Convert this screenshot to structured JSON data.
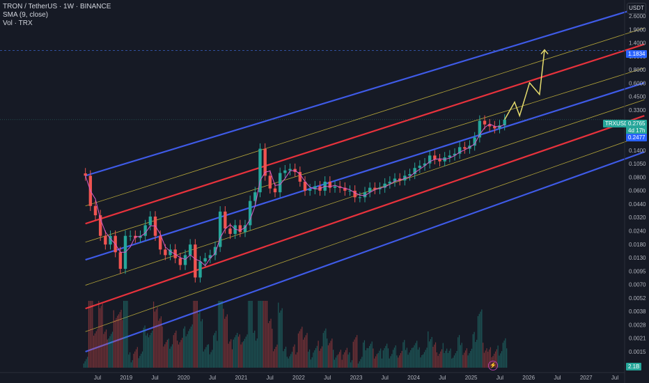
{
  "legend": {
    "symbol": "TRON / TetherUS · 1W · BINANCE",
    "sma": "SMA (9, close)",
    "vol": "Vol · TRX"
  },
  "axis": {
    "currency": "USDT",
    "y_ticks": [
      "2.6000",
      "1.9000",
      "1.4000",
      "1.0500",
      "0.8000",
      "0.6000",
      "0.4500",
      "0.3300",
      "0.2500",
      "0.1900",
      "0.1400",
      "0.1050",
      "0.0800",
      "0.0600",
      "0.0440",
      "0.0320",
      "0.0240",
      "0.0180",
      "0.0130",
      "0.0095",
      "0.0070",
      "0.0052",
      "0.0038",
      "0.0028",
      "0.0021",
      "0.0015"
    ],
    "x_ticks": [
      "Jul",
      "2019",
      "Jul",
      "2020",
      "Jul",
      "2021",
      "Jul",
      "2022",
      "Jul",
      "2023",
      "Jul",
      "2024",
      "Jul",
      "2025",
      "Jul",
      "2026",
      "Jul",
      "2027",
      "Jul"
    ]
  },
  "price_labels": {
    "target": "1.1834",
    "pair": "TRXUSDT",
    "last": "0.2765",
    "countdown": "4d 17h",
    "sma_value": "0.2477",
    "volume": "2.1B"
  },
  "colors": {
    "background": "#161a25",
    "blue_channel": "#3f5be8",
    "red_channel": "#e8323c",
    "yellow_channel": "#b8a83a",
    "projection": "#e6dc6e",
    "up": "#26a69a",
    "down": "#ef5350",
    "sma": "#d85cc8",
    "target_tag": "#2962ff",
    "last_tag": "#26a69a"
  },
  "chart_data": {
    "type": "candlestick",
    "symbol": "TRXUSDT",
    "interval": "1W",
    "y_scale": "log",
    "ylim": [
      0.0015,
      3.0
    ],
    "x_range": [
      "2018-05",
      "2027-09"
    ],
    "grid": false,
    "close_series": [
      [
        "2018-05",
        0.085
      ],
      [
        "2018-06",
        0.045
      ],
      [
        "2018-07",
        0.037
      ],
      [
        "2018-08",
        0.024
      ],
      [
        "2018-09",
        0.02
      ],
      [
        "2018-10",
        0.024
      ],
      [
        "2018-11",
        0.017
      ],
      [
        "2018-12",
        0.012
      ],
      [
        "2019-01",
        0.024
      ],
      [
        "2019-02",
        0.024
      ],
      [
        "2019-03",
        0.023
      ],
      [
        "2019-04",
        0.024
      ],
      [
        "2019-05",
        0.03
      ],
      [
        "2019-06",
        0.036
      ],
      [
        "2019-07",
        0.024
      ],
      [
        "2019-08",
        0.018
      ],
      [
        "2019-09",
        0.016
      ],
      [
        "2019-10",
        0.018
      ],
      [
        "2019-11",
        0.015
      ],
      [
        "2019-12",
        0.013
      ],
      [
        "2020-01",
        0.016
      ],
      [
        "2020-02",
        0.02
      ],
      [
        "2020-03",
        0.01
      ],
      [
        "2020-04",
        0.014
      ],
      [
        "2020-05",
        0.015
      ],
      [
        "2020-06",
        0.016
      ],
      [
        "2020-07",
        0.019
      ],
      [
        "2020-08",
        0.04
      ],
      [
        "2020-09",
        0.028
      ],
      [
        "2020-10",
        0.025
      ],
      [
        "2020-11",
        0.03
      ],
      [
        "2020-12",
        0.026
      ],
      [
        "2021-01",
        0.03
      ],
      [
        "2021-02",
        0.05
      ],
      [
        "2021-03",
        0.06
      ],
      [
        "2021-04",
        0.15
      ],
      [
        "2021-05",
        0.085
      ],
      [
        "2021-06",
        0.065
      ],
      [
        "2021-07",
        0.06
      ],
      [
        "2021-08",
        0.09
      ],
      [
        "2021-09",
        0.095
      ],
      [
        "2021-10",
        0.098
      ],
      [
        "2021-11",
        0.092
      ],
      [
        "2021-12",
        0.075
      ],
      [
        "2022-01",
        0.062
      ],
      [
        "2022-02",
        0.064
      ],
      [
        "2022-03",
        0.068
      ],
      [
        "2022-04",
        0.062
      ],
      [
        "2022-05",
        0.075
      ],
      [
        "2022-06",
        0.066
      ],
      [
        "2022-07",
        0.068
      ],
      [
        "2022-08",
        0.066
      ],
      [
        "2022-09",
        0.062
      ],
      [
        "2022-10",
        0.062
      ],
      [
        "2022-11",
        0.054
      ],
      [
        "2022-12",
        0.054
      ],
      [
        "2023-01",
        0.06
      ],
      [
        "2023-02",
        0.066
      ],
      [
        "2023-03",
        0.064
      ],
      [
        "2023-04",
        0.066
      ],
      [
        "2023-05",
        0.072
      ],
      [
        "2023-06",
        0.075
      ],
      [
        "2023-07",
        0.08
      ],
      [
        "2023-08",
        0.077
      ],
      [
        "2023-09",
        0.085
      ],
      [
        "2023-10",
        0.088
      ],
      [
        "2023-11",
        0.1
      ],
      [
        "2023-12",
        0.105
      ],
      [
        "2024-01",
        0.11
      ],
      [
        "2024-02",
        0.13
      ],
      [
        "2024-03",
        0.12
      ],
      [
        "2024-04",
        0.115
      ],
      [
        "2024-05",
        0.125
      ],
      [
        "2024-06",
        0.13
      ],
      [
        "2024-07",
        0.135
      ],
      [
        "2024-08",
        0.155
      ],
      [
        "2024-09",
        0.15
      ],
      [
        "2024-10",
        0.16
      ],
      [
        "2024-11",
        0.19
      ],
      [
        "2024-12",
        0.27
      ],
      [
        "2025-01",
        0.25
      ],
      [
        "2025-02",
        0.24
      ],
      [
        "2025-03",
        0.23
      ],
      [
        "2025-04",
        0.245
      ],
      [
        "2025-05",
        0.2765
      ]
    ],
    "channels": [
      {
        "color": "blue",
        "start": [
          "2018-05",
          0.085
        ],
        "end": [
          "2027-09",
          3.0
        ]
      },
      {
        "color": "yellow",
        "start": [
          "2018-05",
          0.045
        ],
        "end": [
          "2027-09",
          1.9
        ]
      },
      {
        "color": "red",
        "start": [
          "2018-05",
          0.031
        ],
        "end": [
          "2027-09",
          1.35
        ]
      },
      {
        "color": "yellow",
        "start": [
          "2018-05",
          0.021
        ],
        "end": [
          "2027-09",
          0.82
        ]
      },
      {
        "color": "blue",
        "start": [
          "2018-05",
          0.0145
        ],
        "end": [
          "2027-09",
          0.6
        ]
      },
      {
        "color": "yellow",
        "start": [
          "2018-05",
          0.0085
        ],
        "end": [
          "2027-09",
          0.42
        ]
      },
      {
        "color": "red",
        "start": [
          "2018-05",
          0.0052
        ],
        "end": [
          "2027-09",
          0.3
        ]
      },
      {
        "color": "yellow",
        "start": [
          "2018-05",
          0.0032
        ],
        "end": [
          "2027-09",
          0.2
        ]
      },
      {
        "color": "blue",
        "start": [
          "2018-05",
          0.0021
        ],
        "end": [
          "2027-09",
          0.14
        ]
      }
    ],
    "projection_path": [
      [
        "2025-05",
        0.2765
      ],
      [
        "2025-07",
        0.4
      ],
      [
        "2025-08",
        0.3
      ],
      [
        "2025-10",
        0.6
      ],
      [
        "2025-12",
        0.47
      ],
      [
        "2026-01",
        1.2
      ]
    ],
    "target_level": 1.1834,
    "last_price": 0.2765,
    "sma_last": 0.2477
  }
}
